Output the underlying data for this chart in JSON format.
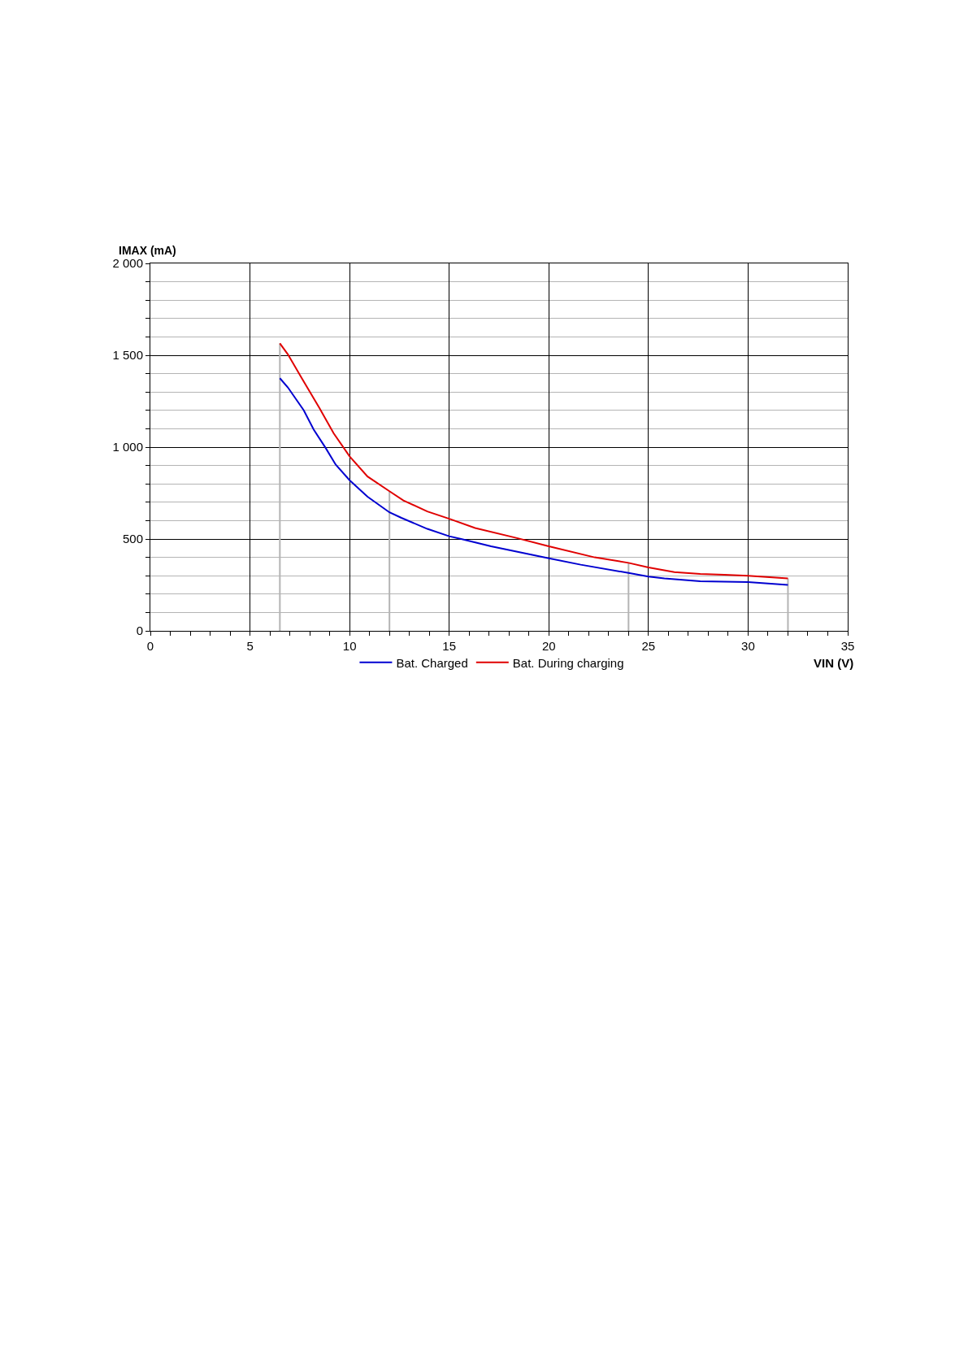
{
  "chart_data": {
    "type": "line",
    "xlabel": "VIN (V)",
    "ylabel": "IMAX (mA)",
    "xlim": [
      0,
      35
    ],
    "ylim": [
      0,
      2000
    ],
    "xticks": [
      0,
      {
        "value": 1,
        "label": null
      },
      {
        "value": 2,
        "label": null
      },
      {
        "value": 3,
        "label": null
      },
      {
        "value": 4,
        "label": null
      },
      5,
      {
        "value": 6,
        "label": null
      },
      {
        "value": 7,
        "label": null
      },
      {
        "value": 8,
        "label": null
      },
      {
        "value": 9,
        "label": null
      },
      10,
      {
        "value": 11,
        "label": null
      },
      {
        "value": 12,
        "label": null
      },
      {
        "value": 13,
        "label": null
      },
      {
        "value": 14,
        "label": null
      },
      15,
      {
        "value": 16,
        "label": null
      },
      {
        "value": 17,
        "label": null
      },
      {
        "value": 18,
        "label": null
      },
      {
        "value": 19,
        "label": null
      },
      20,
      {
        "value": 21,
        "label": null
      },
      {
        "value": 22,
        "label": null
      },
      {
        "value": 23,
        "label": null
      },
      {
        "value": 24,
        "label": null
      },
      25,
      {
        "value": 26,
        "label": null
      },
      {
        "value": 27,
        "label": null
      },
      {
        "value": 28,
        "label": null
      },
      {
        "value": 29,
        "label": null
      },
      30,
      {
        "value": 31,
        "label": null
      },
      {
        "value": 32,
        "label": null
      },
      {
        "value": 33,
        "label": null
      },
      {
        "value": 34,
        "label": null
      },
      35
    ],
    "yticks": [
      0,
      {
        "value": 100,
        "label": null
      },
      {
        "value": 200,
        "label": null
      },
      {
        "value": 300,
        "label": null
      },
      {
        "value": 400,
        "label": null
      },
      500,
      {
        "value": 600,
        "label": null
      },
      {
        "value": 700,
        "label": null
      },
      {
        "value": 800,
        "label": null
      },
      {
        "value": 900,
        "label": null
      },
      {
        "value": 1000,
        "label": "1 000"
      },
      {
        "value": 1100,
        "label": null
      },
      {
        "value": 1200,
        "label": null
      },
      {
        "value": 1300,
        "label": null
      },
      {
        "value": 1400,
        "label": null
      },
      {
        "value": 1500,
        "label": "1 500"
      },
      {
        "value": 1600,
        "label": null
      },
      {
        "value": 1700,
        "label": null
      },
      {
        "value": 1800,
        "label": null
      },
      {
        "value": 1900,
        "label": null
      },
      {
        "value": 2000,
        "label": "2 000"
      }
    ],
    "grid": true,
    "legend": "bottom",
    "series": [
      {
        "type": "line",
        "color": "#b4b4b4",
        "x": [
          6.5,
          6.5
        ],
        "values": [
          0,
          1565
        ]
      },
      {
        "type": "line",
        "color": "#b4b4b4",
        "x": [
          12,
          12
        ],
        "values": [
          0,
          760
        ]
      },
      {
        "type": "line",
        "color": "#b4b4b4",
        "x": [
          24,
          24
        ],
        "values": [
          0,
          370
        ]
      },
      {
        "type": "line",
        "color": "#b4b4b4",
        "x": [
          32,
          32
        ],
        "values": [
          0,
          285
        ]
      },
      {
        "name": "Bat. Charged",
        "color": "#0000d0",
        "x": [
          6.5,
          6.9,
          7.7,
          8.2,
          8.8,
          9.3,
          10,
          10.9,
          12,
          12.6,
          13.9,
          15,
          15.6,
          17.1,
          20,
          21.6,
          24,
          25,
          25.8,
          27.6,
          30,
          32
        ],
        "values": [
          1375,
          1325,
          1200,
          1095,
          995,
          905,
          820,
          730,
          645,
          615,
          555,
          515,
          500,
          460,
          395,
          360,
          315,
          295,
          285,
          270,
          265,
          250
        ]
      },
      {
        "name": "Bat. During charging",
        "color": "#e00000",
        "x": [
          6.5,
          6.9,
          7.6,
          8.5,
          9.2,
          10,
          10.9,
          12,
          12.7,
          13.9,
          15,
          16.3,
          18.4,
          20,
          22.3,
          24,
          25,
          26.3,
          27.6,
          28.8,
          30,
          32
        ],
        "values": [
          1565,
          1505,
          1375,
          1210,
          1075,
          950,
          840,
          760,
          710,
          650,
          610,
          560,
          505,
          460,
          400,
          370,
          345,
          320,
          310,
          305,
          300,
          285
        ]
      }
    ]
  }
}
